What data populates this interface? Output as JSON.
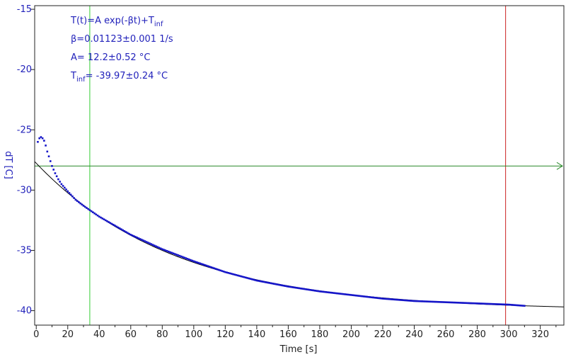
{
  "chart_data": {
    "type": "scatter",
    "xlabel": "Time [s]",
    "ylabel": "dT [C]",
    "xlim": [
      -1,
      335
    ],
    "ylim": [
      -41.2,
      -14.7
    ],
    "xticks": [
      0,
      20,
      40,
      60,
      80,
      100,
      120,
      140,
      160,
      180,
      200,
      220,
      240,
      260,
      280,
      300,
      320
    ],
    "yticks": [
      -15,
      -20,
      -25,
      -30,
      -35,
      -40
    ],
    "annotations": {
      "model": "T(t)=A exp(-βt)+T",
      "model_sub": "inf",
      "beta": "β=0.01123±0.001 1/s",
      "A": "A= 12.2±0.52 °C",
      "tinf_prefix": "T",
      "tinf_sub": "inf",
      "tinf_value": "= -39.97±0.24 °C"
    },
    "fit": {
      "A": 12.2,
      "beta": 0.01123,
      "T_inf": -39.97
    },
    "markers": {
      "green_vline_x": 34,
      "red_vline_x": 298,
      "hline_y": -28
    },
    "series": [
      {
        "kind": "measured",
        "x": [
          1,
          2,
          3,
          4,
          5,
          6,
          7,
          8,
          9,
          10,
          11,
          12,
          14,
          16,
          18,
          20,
          25,
          30,
          40,
          60,
          80,
          100,
          120,
          140,
          160,
          180,
          200,
          220,
          240,
          260,
          280,
          300,
          310
        ],
        "y": [
          -26.0,
          -25.7,
          -25.6,
          -25.7,
          -25.9,
          -26.3,
          -26.8,
          -27.2,
          -27.6,
          -28.0,
          -28.3,
          -28.6,
          -29.1,
          -29.5,
          -29.8,
          -30.1,
          -30.8,
          -31.3,
          -32.2,
          -33.7,
          -34.9,
          -35.9,
          -36.8,
          -37.5,
          -38.0,
          -38.4,
          -38.7,
          -39.0,
          -39.2,
          -39.3,
          -39.4,
          -39.5,
          -39.6
        ]
      },
      {
        "kind": "fit",
        "x_range": [
          -1,
          335
        ]
      }
    ],
    "colors": {
      "points": "#1515c8",
      "fit": "#000000",
      "green": "#33cc33",
      "red": "#cc2222",
      "hline": "#2a8a2a",
      "ytick_labels": "#2222bb",
      "ylabel": "#2222bb"
    },
    "grid": false
  }
}
